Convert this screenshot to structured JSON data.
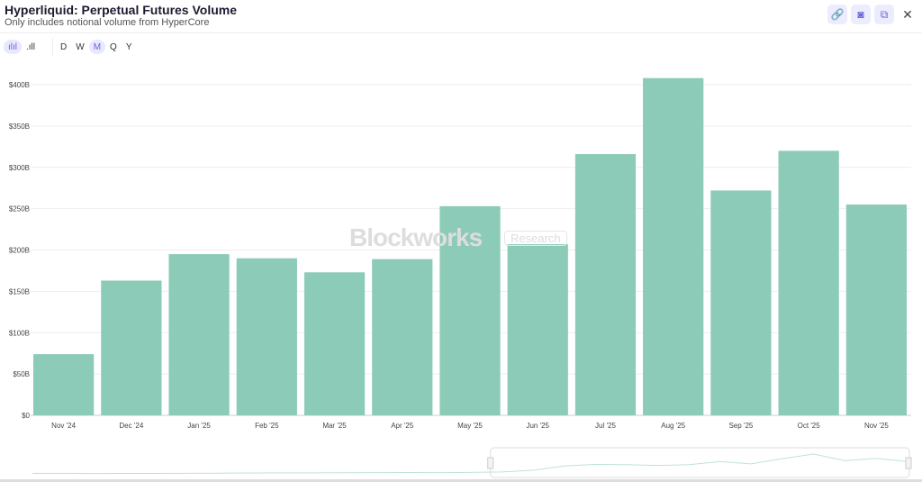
{
  "header": {
    "title": "Hyperliquid: Perpetual Futures Volume",
    "subtitle": "Only includes notional volume from HyperCore"
  },
  "toolbar": {
    "chart_types": [
      {
        "icon": "bar-chart-icon",
        "active": true
      },
      {
        "icon": "signal-bars-icon",
        "active": false
      }
    ],
    "periods": [
      {
        "label": "D",
        "active": false
      },
      {
        "label": "W",
        "active": false
      },
      {
        "label": "M",
        "active": true
      },
      {
        "label": "Q",
        "active": false
      },
      {
        "label": "Y",
        "active": false
      }
    ],
    "actions": [
      {
        "icon": "link-icon",
        "glyph": "🔗"
      },
      {
        "icon": "camera-icon",
        "glyph": "◙"
      },
      {
        "icon": "embed-icon",
        "glyph": "⧉"
      },
      {
        "icon": "close-icon",
        "glyph": "✕"
      }
    ]
  },
  "watermark": {
    "brand": "Blockworks",
    "tag": "Research"
  },
  "colors": {
    "bar": "#8ccbb7",
    "accent": "#6b63d9"
  },
  "chart_data": {
    "type": "bar",
    "categories": [
      "Nov '24",
      "Dec '24",
      "Jan '25",
      "Feb '25",
      "Mar '25",
      "Apr '25",
      "May '25",
      "Jun '25",
      "Jul '25",
      "Aug '25",
      "Sep '25",
      "Oct '25",
      "Nov '25"
    ],
    "values": [
      74,
      163,
      195,
      190,
      173,
      189,
      253,
      207,
      316,
      408,
      272,
      320,
      255
    ],
    "unit": "B",
    "yticks": [
      "$0",
      "$50B",
      "$100B",
      "$150B",
      "$200B",
      "$250B",
      "$300B",
      "$350B",
      "$400B"
    ],
    "ylim": [
      0,
      400
    ],
    "grid": true
  }
}
